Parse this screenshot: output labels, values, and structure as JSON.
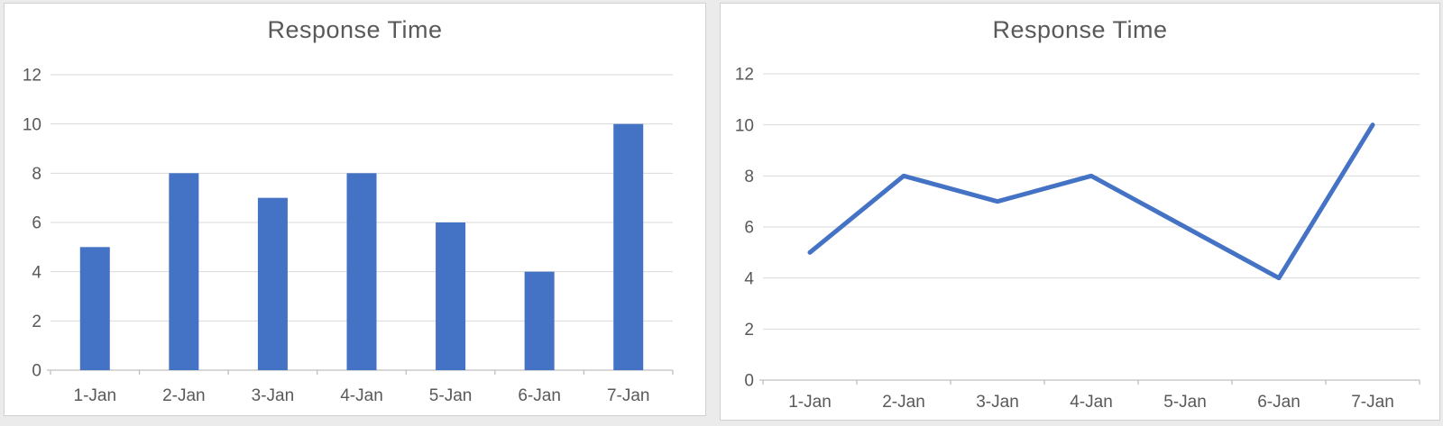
{
  "page": {
    "background_color": "#ebebeb",
    "panel_background_color": "#ffffff",
    "panel_border_color": "#d0d0d0"
  },
  "chart_data": [
    {
      "type": "bar",
      "title": "Response Time",
      "categories": [
        "1-Jan",
        "2-Jan",
        "3-Jan",
        "4-Jan",
        "5-Jan",
        "6-Jan",
        "7-Jan"
      ],
      "values": [
        5,
        8,
        7,
        8,
        6,
        4,
        10
      ],
      "xlabel": "",
      "ylabel": "",
      "ylim": [
        0,
        12
      ],
      "yticks": [
        0,
        2,
        4,
        6,
        8,
        10,
        12
      ],
      "grid": true,
      "legend_position": "none",
      "series_color": "#4472c4",
      "gridline_color": "#d9d9d9",
      "axis_color": "#bfbfbf",
      "tick_label_color": "#595959",
      "title_color": "#595959"
    },
    {
      "type": "line",
      "title": "Response Time",
      "categories": [
        "1-Jan",
        "2-Jan",
        "3-Jan",
        "4-Jan",
        "5-Jan",
        "6-Jan",
        "7-Jan"
      ],
      "values": [
        5,
        8,
        7,
        8,
        6,
        4,
        10
      ],
      "xlabel": "",
      "ylabel": "",
      "ylim": [
        0,
        12
      ],
      "yticks": [
        0,
        2,
        4,
        6,
        8,
        10,
        12
      ],
      "grid": true,
      "legend_position": "none",
      "series_color": "#4472c4",
      "gridline_color": "#d9d9d9",
      "axis_color": "#bfbfbf",
      "tick_label_color": "#595959",
      "title_color": "#595959"
    }
  ]
}
